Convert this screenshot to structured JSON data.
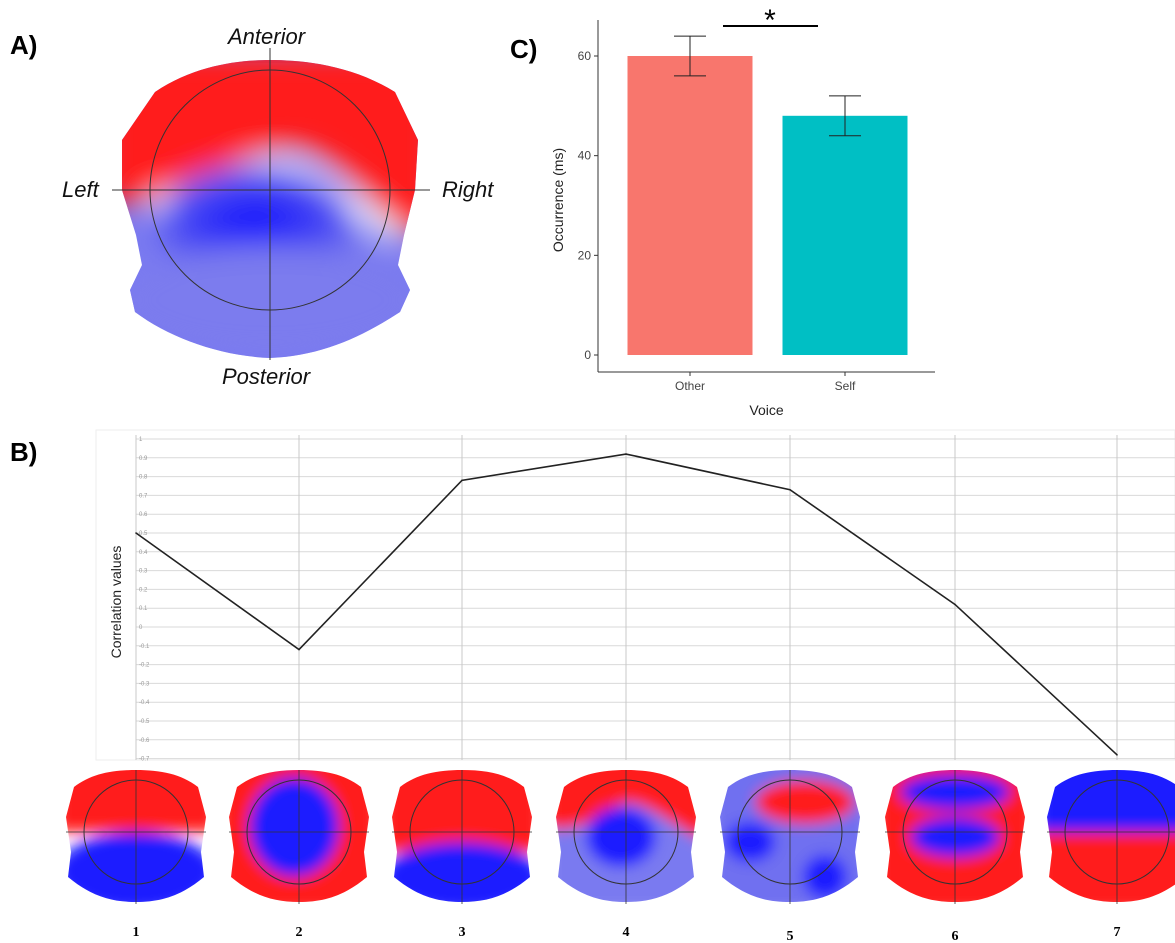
{
  "panels": {
    "a_label": "A)",
    "b_label": "B)",
    "c_label": "C)"
  },
  "topomap_a": {
    "anterior": "Anterior",
    "posterior": "Posterior",
    "left": "Left",
    "right": "Right"
  },
  "colors": {
    "positive": "#ff1a1a",
    "negative": "#1a1aff",
    "other_bar": "#f8766d",
    "self_bar": "#00bfc4"
  },
  "chart_data": [
    {
      "type": "bar",
      "panel": "C",
      "categories": [
        "Other",
        "Self"
      ],
      "values": [
        60,
        48
      ],
      "error_low": [
        56,
        44
      ],
      "error_high": [
        64,
        52
      ],
      "xlabel": "Voice",
      "ylabel": "Occurrence (ms)",
      "ylim": [
        0,
        67
      ],
      "yticks": [
        0,
        20,
        40,
        60
      ],
      "significance": "*",
      "grid": false
    },
    {
      "type": "line",
      "panel": "B",
      "x": [
        1,
        2,
        3,
        4,
        5,
        6,
        7
      ],
      "y": [
        0.5,
        -0.12,
        0.78,
        0.92,
        0.73,
        0.12,
        -0.68
      ],
      "ylabel": "Correlation values",
      "ylim": [
        -0.7,
        1
      ],
      "yticks": [
        "1",
        "0.9",
        "0.8",
        "0.7",
        "0.6",
        "0.5",
        "0.4",
        "0.3",
        "0.2",
        "0.1",
        "0",
        "-0.1",
        "-0.2",
        "-0.3",
        "-0.4",
        "-0.5",
        "-0.6",
        "-0.7"
      ],
      "grid": true,
      "map_labels": [
        "1",
        "2",
        "3",
        "4",
        "5",
        "6",
        "7"
      ]
    }
  ]
}
